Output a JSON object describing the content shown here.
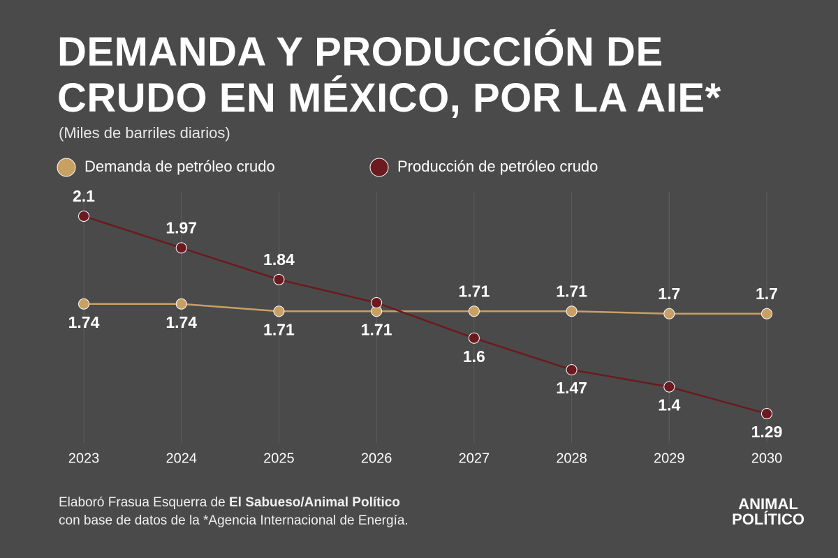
{
  "chart_data": {
    "type": "line",
    "title": [
      "DEMANDA Y PRODUCCIÓN DE",
      "CRUDO EN MÉXICO, POR LA AIE*"
    ],
    "subtitle": "(Miles de barriles diarios)",
    "x": [
      2023,
      2024,
      2025,
      2026,
      2027,
      2028,
      2029,
      2030
    ],
    "xlim": [
      2023,
      2030
    ],
    "xticks": [
      2023,
      2024,
      2025,
      2026,
      2027,
      2028,
      2029,
      2030
    ],
    "ylim": [
      1.17,
      2.2
    ],
    "grid": true,
    "series": [
      {
        "name": "Demanda de petróleo crudo",
        "color": "#c9a063",
        "values": [
          1.74,
          1.74,
          1.71,
          1.71,
          1.71,
          1.71,
          1.7,
          1.7
        ],
        "value_labels": [
          "1.74",
          "1.74",
          "1.71",
          "1.71",
          "1.71",
          "1.71",
          "1.7",
          "1.7"
        ]
      },
      {
        "name": "Producción de petróleo crudo",
        "color": "#6b1a1f",
        "values": [
          2.1,
          1.97,
          1.84,
          1.745,
          1.6,
          1.47,
          1.4,
          1.29
        ],
        "value_labels": [
          "2.1",
          "1.97",
          "1.84",
          null,
          "1.6",
          "1.47",
          "1.4",
          "1.29"
        ]
      }
    ],
    "source": {
      "prefix": "Elaboró Frasua Esquerra de ",
      "bold": "El Sabueso/Animal Político",
      "line2": "con base de datos de la *Agencia Internacional de Energía."
    },
    "logo": [
      "ANIMAL",
      "POLÍTICO"
    ]
  }
}
